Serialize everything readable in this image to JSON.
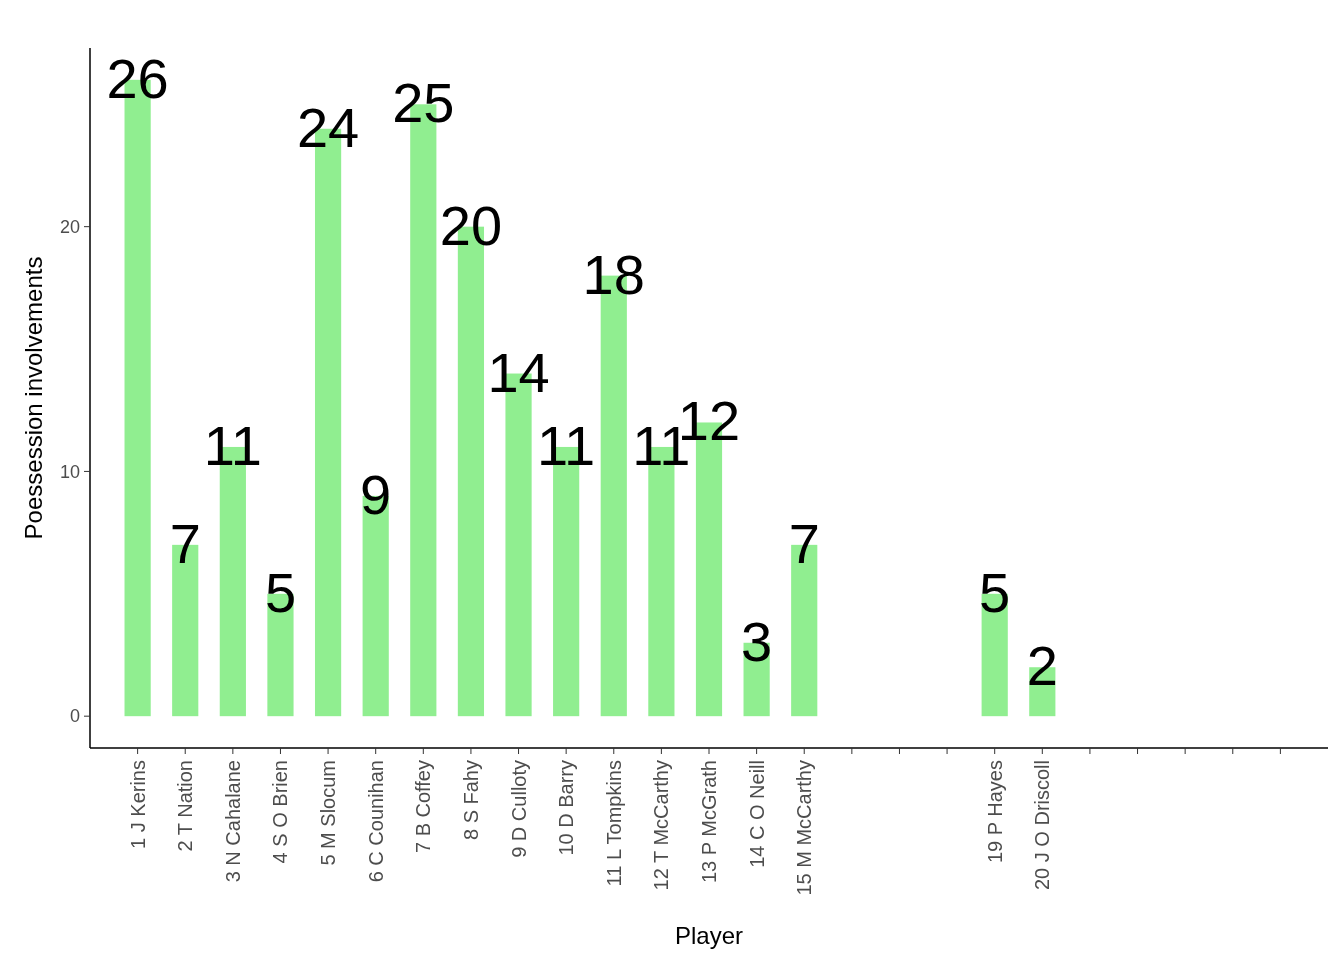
{
  "chart_data": {
    "type": "bar",
    "xlabel": "Player",
    "ylabel": "Poessession involvements",
    "categories": [
      "1 J Kerins",
      "2 T Nation",
      "3 N Cahalane",
      "4 S O Brien",
      "5 M Slocum",
      "6 C Counihan",
      "7 B Coffey",
      "8 S Fahy",
      "9 D Culloty",
      "10 D Barry",
      "11 L Tompkins",
      "12 T McCarthy",
      "13 P McGrath",
      "14 C O Neill",
      "15 M McCarthy",
      null,
      null,
      null,
      "19 P Hayes",
      "20 J O Driscoll",
      null,
      null,
      null,
      null,
      null
    ],
    "values": [
      26,
      7,
      11,
      5,
      24,
      9,
      25,
      20,
      14,
      11,
      18,
      11,
      12,
      3,
      7,
      null,
      null,
      null,
      5,
      2,
      null,
      null,
      null,
      null,
      null
    ],
    "color": "#90ee90",
    "ylim": [
      -1.3,
      27.3
    ],
    "yticks": [
      0,
      10,
      20
    ],
    "grid": false,
    "data_labels": true
  }
}
